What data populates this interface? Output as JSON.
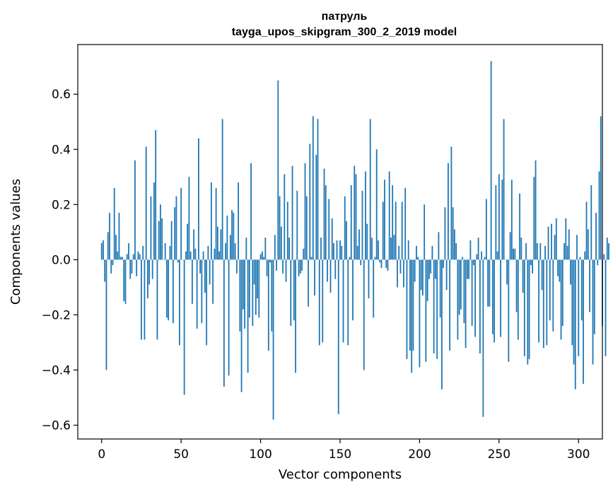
{
  "chart_data": {
    "type": "bar",
    "title": "патруль",
    "subtitle": "tayga_upos_skipgram_300_2_2019 model",
    "xlabel": "Vector components",
    "ylabel": "Components values",
    "xlim": [
      -15,
      315
    ],
    "ylim": [
      -0.65,
      0.78
    ],
    "xticks": [
      "0",
      "50",
      "100",
      "150",
      "200",
      "250",
      "300"
    ],
    "yticks": [
      "−0.6",
      "−0.4",
      "−0.2",
      "0.0",
      "0.2",
      "0.4",
      "0.6"
    ],
    "grid": false,
    "bar_color": "#1f77b4",
    "x_start": 0,
    "values": [
      0.06,
      0.07,
      -0.08,
      -0.4,
      0.1,
      0.17,
      -0.05,
      -0.02,
      0.26,
      0.09,
      0.03,
      0.17,
      0.01,
      0.01,
      -0.15,
      -0.16,
      0.02,
      0.06,
      -0.07,
      -0.05,
      0.02,
      0.36,
      -0.06,
      0.03,
      0.02,
      -0.29,
      0.05,
      -0.29,
      0.41,
      -0.14,
      -0.09,
      0.23,
      -0.07,
      0.28,
      0.47,
      -0.29,
      0.14,
      0.2,
      0.15,
      0.0,
      0.06,
      -0.21,
      -0.22,
      0.05,
      0.14,
      -0.23,
      0.19,
      0.23,
      -0.01,
      -0.31,
      0.26,
      0.0,
      -0.49,
      0.03,
      0.13,
      0.3,
      0.03,
      -0.16,
      0.11,
      0.04,
      -0.25,
      0.44,
      -0.05,
      -0.23,
      0.03,
      -0.12,
      -0.31,
      0.05,
      -0.09,
      0.28,
      -0.16,
      0.04,
      0.26,
      0.12,
      0.03,
      0.11,
      0.51,
      -0.46,
      0.06,
      0.16,
      -0.42,
      0.09,
      0.18,
      0.17,
      0.06,
      -0.05,
      0.28,
      -0.26,
      -0.48,
      -0.18,
      -0.25,
      0.08,
      -0.41,
      -0.21,
      0.35,
      -0.24,
      -0.09,
      -0.2,
      -0.14,
      -0.21,
      0.02,
      0.03,
      0.01,
      0.08,
      -0.06,
      -0.33,
      -0.01,
      -0.26,
      -0.58,
      0.09,
      -0.04,
      0.65,
      0.23,
      0.12,
      -0.05,
      0.31,
      -0.08,
      0.21,
      0.08,
      -0.24,
      0.34,
      -0.22,
      -0.41,
      0.25,
      -0.06,
      -0.05,
      -0.04,
      0.04,
      0.35,
      0.23,
      -0.17,
      0.42,
      0.01,
      0.52,
      -0.13,
      0.38,
      0.51,
      -0.31,
      0.08,
      -0.3,
      0.33,
      0.27,
      -0.08,
      0.22,
      -0.12,
      0.15,
      0.06,
      -0.07,
      0.07,
      -0.56,
      0.07,
      0.05,
      -0.3,
      0.23,
      0.14,
      -0.31,
      0.01,
      0.27,
      -0.22,
      0.34,
      0.31,
      0.05,
      0.11,
      -0.02,
      0.25,
      -0.4,
      0.32,
      0.13,
      -0.14,
      0.51,
      0.08,
      -0.21,
      0.01,
      0.4,
      0.07,
      -0.01,
      -0.03,
      0.21,
      0.29,
      -0.03,
      -0.04,
      0.32,
      0.08,
      0.27,
      0.09,
      0.21,
      -0.1,
      0.05,
      -0.05,
      0.21,
      -0.1,
      0.26,
      -0.36,
      0.07,
      -0.33,
      -0.41,
      -0.33,
      -0.08,
      0.05,
      0.01,
      -0.39,
      -0.11,
      -0.13,
      0.2,
      -0.37,
      -0.15,
      -0.07,
      -0.05,
      0.05,
      -0.34,
      -0.07,
      -0.36,
      0.1,
      -0.21,
      -0.47,
      -0.03,
      0.19,
      -0.11,
      0.35,
      -0.33,
      0.41,
      0.19,
      0.11,
      0.06,
      -0.29,
      -0.2,
      -0.18,
      0.01,
      -0.23,
      -0.32,
      -0.07,
      -0.07,
      0.07,
      -0.24,
      -0.02,
      -0.28,
      0.02,
      0.08,
      -0.34,
      0.03,
      -0.57,
      0.01,
      0.22,
      -0.17,
      -0.17,
      0.72,
      -0.27,
      -0.3,
      0.27,
      0.03,
      0.31,
      -0.28,
      0.29,
      0.51,
      0.0,
      -0.09,
      -0.37,
      0.1,
      0.29,
      0.04,
      0.04,
      -0.19,
      -0.29,
      0.24,
      0.08,
      -0.12,
      -0.35,
      0.06,
      -0.38,
      -0.36,
      -0.02,
      -0.05,
      0.3,
      0.36,
      0.06,
      -0.3,
      0.06,
      -0.11,
      -0.32,
      0.05,
      -0.31,
      0.12,
      -0.22,
      0.13,
      -0.26,
      0.09,
      0.15,
      -0.06,
      -0.08,
      -0.29,
      -0.24,
      0.06,
      0.15,
      0.05,
      0.11,
      -0.09,
      -0.31,
      -0.38,
      -0.47,
      0.09,
      -0.35,
      0.01,
      -0.22,
      -0.45,
      0.03,
      0.21,
      0.11,
      -0.19,
      0.27,
      -0.38,
      -0.27,
      0.17,
      -0.02,
      0.32,
      0.52,
      -0.24,
      0.02,
      -0.35,
      0.08,
      0.06
    ]
  }
}
